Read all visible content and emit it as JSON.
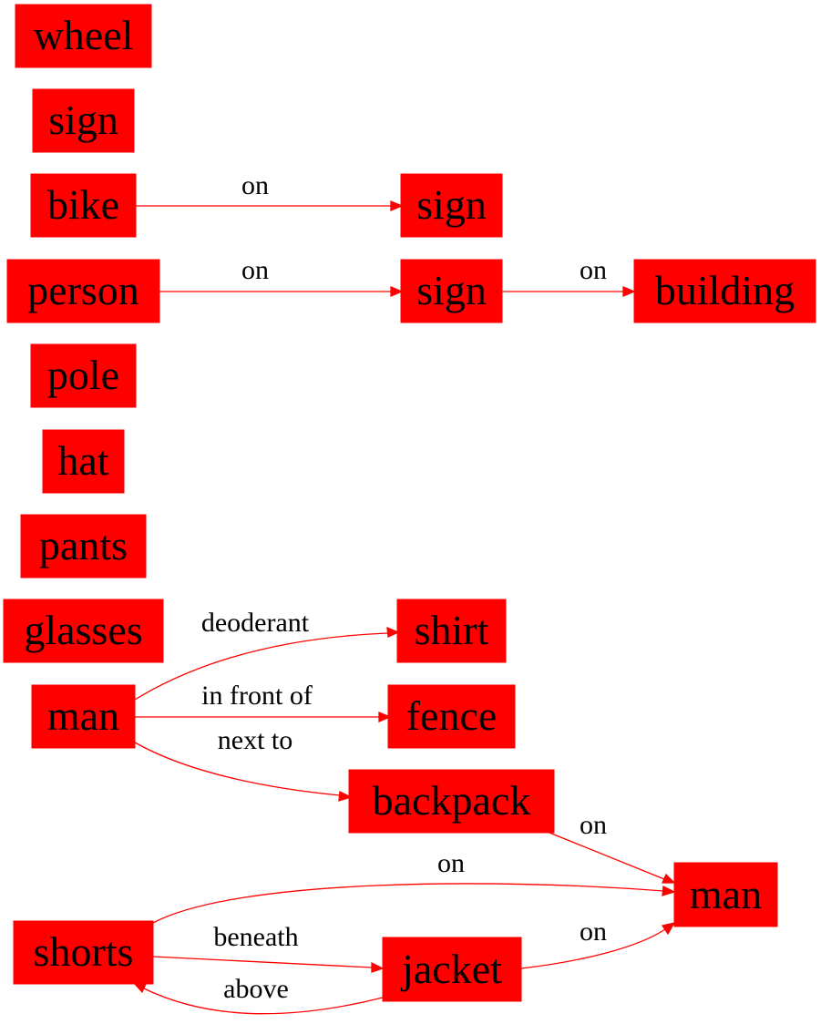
{
  "colors": {
    "node_fill": "#ff0000",
    "edge": "#ff0000",
    "text": "#000000"
  },
  "nodes": [
    {
      "id": "wheel",
      "label": "wheel"
    },
    {
      "id": "sign1",
      "label": "sign"
    },
    {
      "id": "bike",
      "label": "bike"
    },
    {
      "id": "sign2",
      "label": "sign"
    },
    {
      "id": "person",
      "label": "person"
    },
    {
      "id": "sign3",
      "label": "sign"
    },
    {
      "id": "building",
      "label": "building"
    },
    {
      "id": "pole",
      "label": "pole"
    },
    {
      "id": "hat",
      "label": "hat"
    },
    {
      "id": "pants",
      "label": "pants"
    },
    {
      "id": "glasses",
      "label": "glasses"
    },
    {
      "id": "shirt",
      "label": "shirt"
    },
    {
      "id": "man1",
      "label": "man"
    },
    {
      "id": "fence",
      "label": "fence"
    },
    {
      "id": "backpack",
      "label": "backpack"
    },
    {
      "id": "man2",
      "label": "man"
    },
    {
      "id": "shorts",
      "label": "shorts"
    },
    {
      "id": "jacket",
      "label": "jacket"
    }
  ],
  "edges": [
    {
      "id": "bike-sign2",
      "from": "bike",
      "to": "sign2",
      "label": "on"
    },
    {
      "id": "person-sign3",
      "from": "person",
      "to": "sign3",
      "label": "on"
    },
    {
      "id": "sign3-building",
      "from": "sign3",
      "to": "building",
      "label": "on"
    },
    {
      "id": "man1-shirt",
      "from": "man1",
      "to": "shirt",
      "label": "deoderant"
    },
    {
      "id": "man1-fence",
      "from": "man1",
      "to": "fence",
      "label": "in front of"
    },
    {
      "id": "man1-backpack",
      "from": "man1",
      "to": "backpack",
      "label": "next to"
    },
    {
      "id": "backpack-man2",
      "from": "backpack",
      "to": "man2",
      "label": "on"
    },
    {
      "id": "shorts-man2",
      "from": "shorts",
      "to": "man2",
      "label": "on"
    },
    {
      "id": "shorts-jacket",
      "from": "shorts",
      "to": "jacket",
      "label": "beneath"
    },
    {
      "id": "jacket-man2",
      "from": "jacket",
      "to": "man2",
      "label": "on"
    },
    {
      "id": "jacket-shorts",
      "from": "jacket",
      "to": "shorts",
      "label": "above"
    }
  ]
}
